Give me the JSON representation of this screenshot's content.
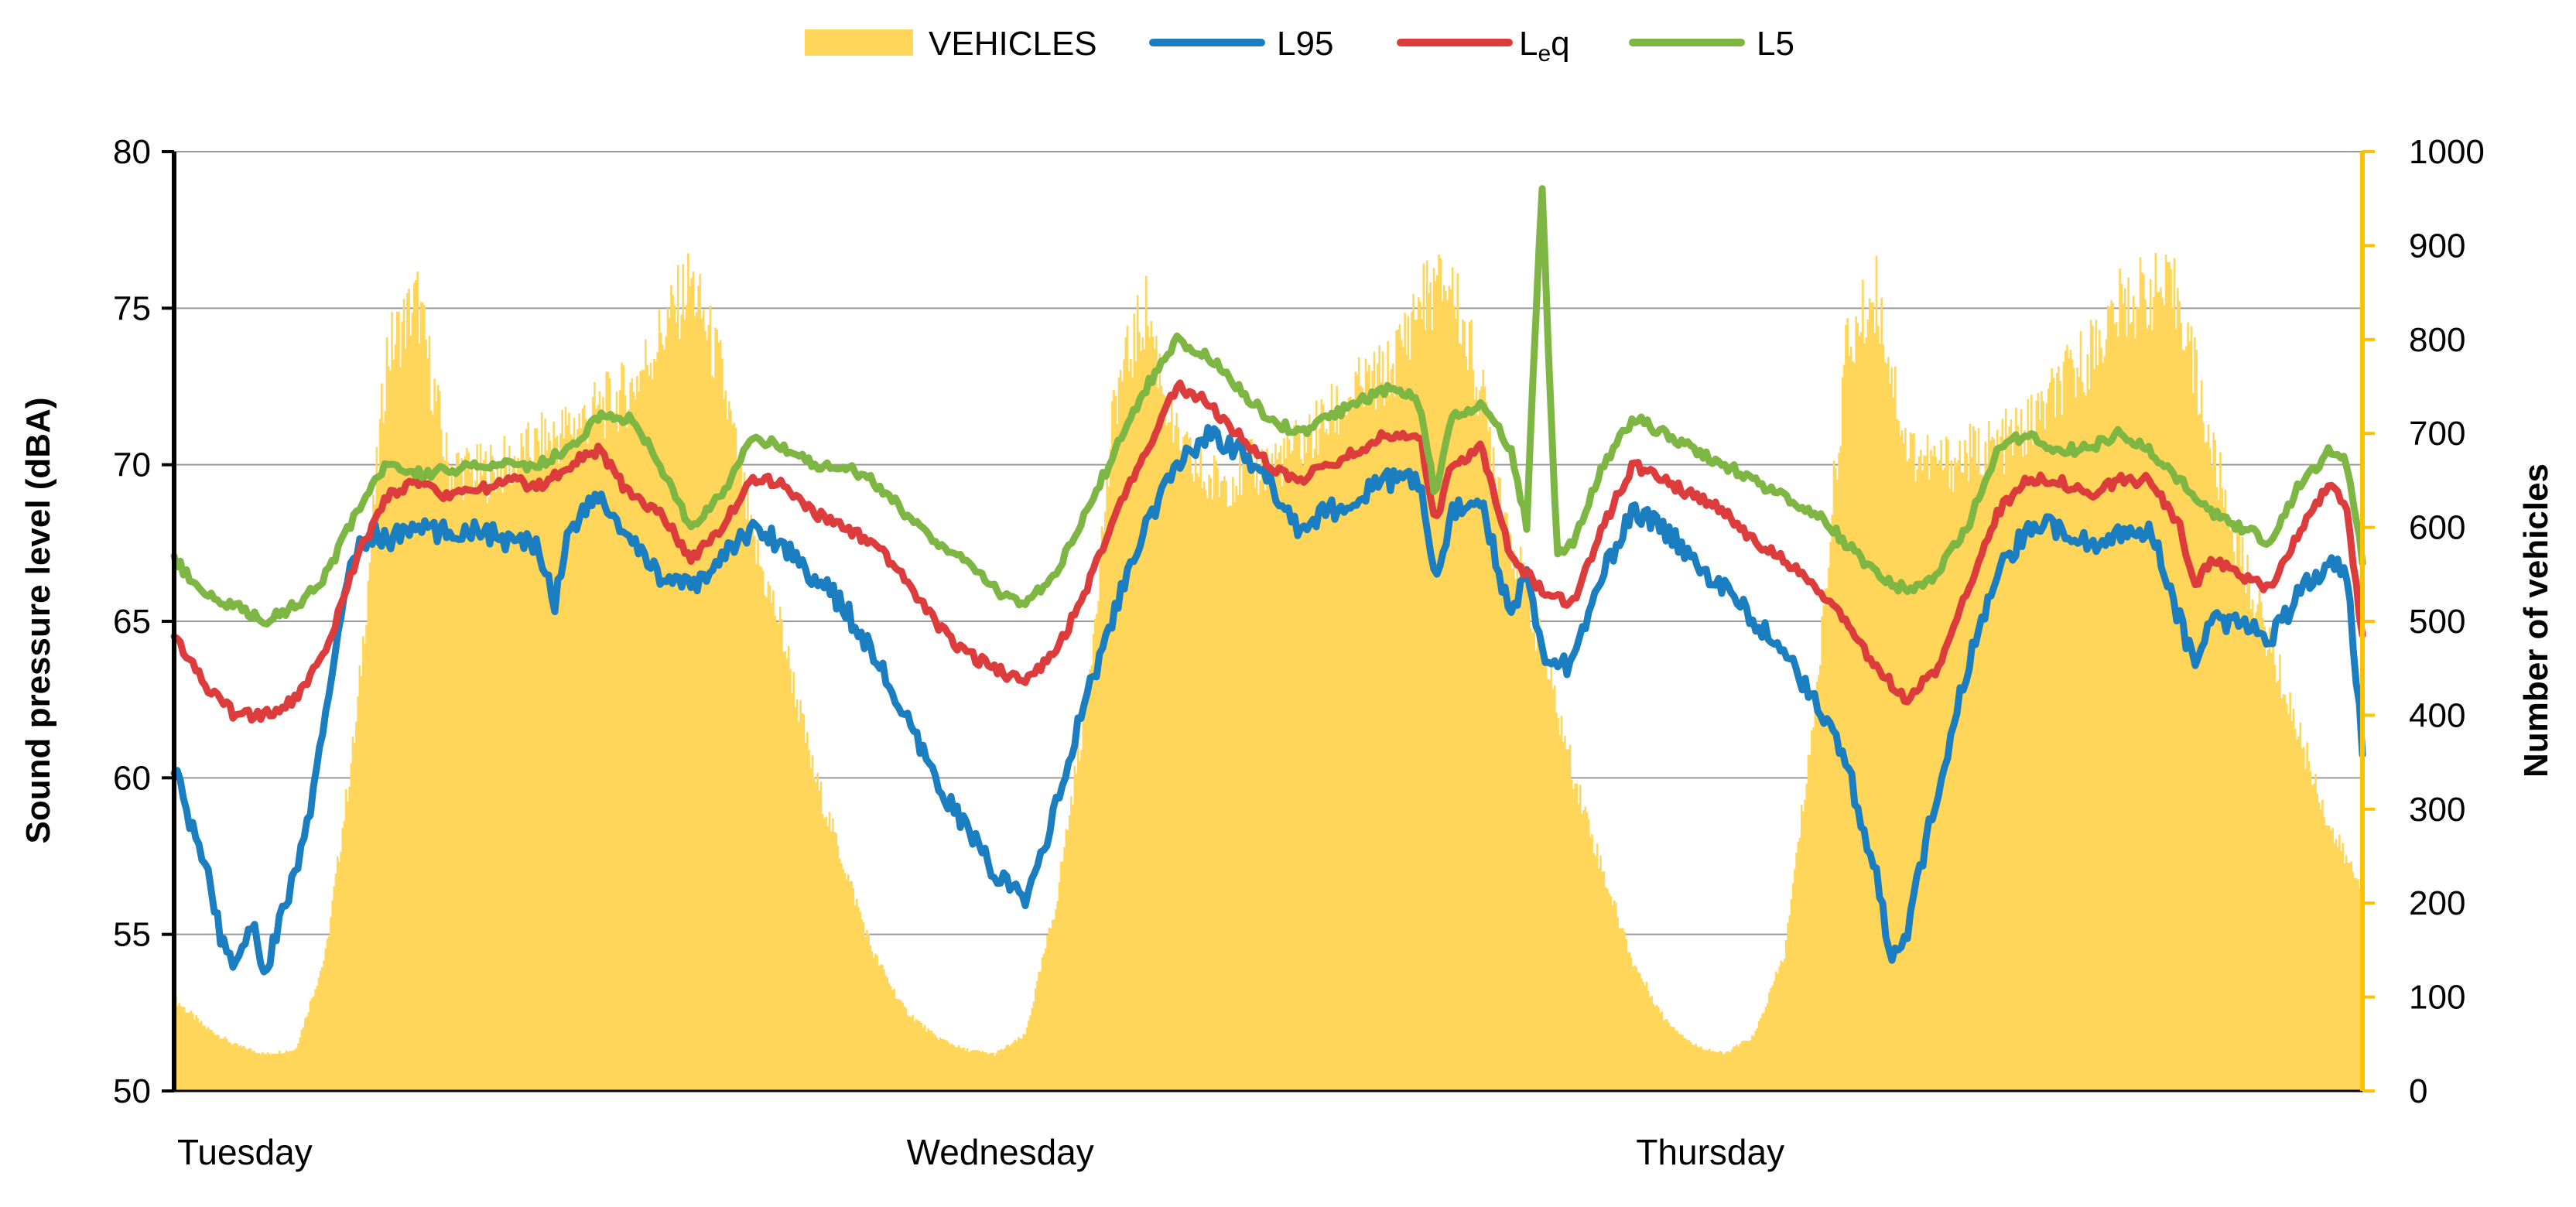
{
  "chart_data": {
    "type": "line",
    "title": "",
    "legend": {
      "position": "top",
      "entries": [
        {
          "key": "vehicles",
          "label": "VEHICLES",
          "color": "#FFD55A",
          "kind": "area"
        },
        {
          "key": "l95",
          "label": "L95",
          "color": "#1A7EC0",
          "kind": "line"
        },
        {
          "key": "leq",
          "label": "L",
          "sub": "e",
          "suffix": "q",
          "color": "#DD3C3C",
          "kind": "line"
        },
        {
          "key": "l5",
          "label": "L5",
          "color": "#7DB642",
          "kind": "line"
        }
      ]
    },
    "y_left": {
      "label": "Sound pressure level (dBA)",
      "min": 50,
      "max": 80,
      "step": 5,
      "ticks": [
        "50",
        "55",
        "60",
        "65",
        "70",
        "75",
        "80"
      ]
    },
    "y_right": {
      "label": "Number of vehicles",
      "min": 0,
      "max": 1000,
      "step": 100,
      "ticks": [
        "0",
        "100",
        "200",
        "300",
        "400",
        "500",
        "600",
        "700",
        "800",
        "900",
        "1000"
      ]
    },
    "x": {
      "unit": "hours from start",
      "range": [
        0,
        72
      ],
      "day_labels": [
        {
          "hour": 0,
          "label": "Tuesday"
        },
        {
          "hour": 24,
          "label": "Wednesday"
        },
        {
          "hour": 48,
          "label": "Thursday"
        }
      ]
    },
    "grid": true,
    "series": [
      {
        "name": "VEHICLES",
        "key": "vehicles",
        "axis": "right",
        "points": [
          [
            0,
            100
          ],
          [
            1,
            70
          ],
          [
            2,
            50
          ],
          [
            3,
            40
          ],
          [
            4,
            45
          ],
          [
            5,
            150
          ],
          [
            6,
            400
          ],
          [
            7,
            800
          ],
          [
            8,
            860
          ],
          [
            9,
            680
          ],
          [
            10,
            670
          ],
          [
            11,
            680
          ],
          [
            12,
            700
          ],
          [
            13,
            720
          ],
          [
            14,
            740
          ],
          [
            15,
            760
          ],
          [
            16,
            820
          ],
          [
            17,
            880
          ],
          [
            18,
            780
          ],
          [
            19,
            600
          ],
          [
            20,
            500
          ],
          [
            21,
            350
          ],
          [
            22,
            250
          ],
          [
            23,
            150
          ],
          [
            24,
            90
          ],
          [
            25,
            60
          ],
          [
            26,
            45
          ],
          [
            27,
            40
          ],
          [
            28,
            60
          ],
          [
            29,
            200
          ],
          [
            30,
            420
          ],
          [
            31,
            760
          ],
          [
            32,
            850
          ],
          [
            33,
            700
          ],
          [
            34,
            660
          ],
          [
            35,
            670
          ],
          [
            36,
            680
          ],
          [
            37,
            700
          ],
          [
            38,
            730
          ],
          [
            39,
            760
          ],
          [
            40,
            780
          ],
          [
            41,
            860
          ],
          [
            42,
            880
          ],
          [
            43,
            760
          ],
          [
            44,
            600
          ],
          [
            45,
            480
          ],
          [
            46,
            350
          ],
          [
            47,
            240
          ],
          [
            48,
            140
          ],
          [
            49,
            80
          ],
          [
            50,
            50
          ],
          [
            51,
            40
          ],
          [
            52,
            60
          ],
          [
            53,
            150
          ],
          [
            54,
            420
          ],
          [
            55,
            800
          ],
          [
            56,
            870
          ],
          [
            57,
            700
          ],
          [
            58,
            680
          ],
          [
            59,
            690
          ],
          [
            60,
            700
          ],
          [
            61,
            720
          ],
          [
            62,
            760
          ],
          [
            63,
            800
          ],
          [
            64,
            850
          ],
          [
            65,
            870
          ],
          [
            66,
            860
          ],
          [
            67,
            700
          ],
          [
            68,
            580
          ],
          [
            69,
            480
          ],
          [
            70,
            380
          ],
          [
            71,
            280
          ],
          [
            72,
            220
          ]
        ]
      },
      {
        "name": "L95",
        "key": "l95",
        "axis": "left",
        "points": [
          [
            0,
            60.5
          ],
          [
            0.5,
            58.5
          ],
          [
            1,
            57.5
          ],
          [
            1.5,
            55
          ],
          [
            2,
            54
          ],
          [
            2.5,
            55.5
          ],
          [
            3,
            53.8
          ],
          [
            3.5,
            55.5
          ],
          [
            4,
            57
          ],
          [
            4.5,
            59
          ],
          [
            5,
            62
          ],
          [
            5.5,
            65.5
          ],
          [
            6,
            67.2
          ],
          [
            6.5,
            67.8
          ],
          [
            7,
            67.6
          ],
          [
            8,
            68
          ],
          [
            9,
            67.8
          ],
          [
            10,
            68
          ],
          [
            11,
            67.5
          ],
          [
            12,
            67.5
          ],
          [
            12.5,
            65.5
          ],
          [
            13,
            68
          ],
          [
            14,
            69
          ],
          [
            15,
            67.5
          ],
          [
            16,
            66.5
          ],
          [
            17,
            66
          ],
          [
            18,
            67
          ],
          [
            19,
            68
          ],
          [
            20,
            67.5
          ],
          [
            21,
            66.5
          ],
          [
            22,
            65.5
          ],
          [
            23,
            64
          ],
          [
            24,
            62
          ],
          [
            25,
            60
          ],
          [
            26,
            58.5
          ],
          [
            27,
            57
          ],
          [
            28,
            56
          ],
          [
            29,
            59
          ],
          [
            30,
            62.5
          ],
          [
            31,
            65.5
          ],
          [
            32,
            68
          ],
          [
            33,
            70
          ],
          [
            34,
            71
          ],
          [
            35,
            70.5
          ],
          [
            36,
            69.5
          ],
          [
            37,
            68
          ],
          [
            38,
            68.5
          ],
          [
            39,
            69
          ],
          [
            40,
            69.5
          ],
          [
            41,
            69.5
          ],
          [
            41.5,
            66
          ],
          [
            42,
            68.5
          ],
          [
            43,
            69
          ],
          [
            44,
            65
          ],
          [
            44.5,
            67
          ],
          [
            45,
            64
          ],
          [
            46,
            63.5
          ],
          [
            47,
            66.5
          ],
          [
            48,
            68.5
          ],
          [
            49,
            68
          ],
          [
            50,
            67
          ],
          [
            51,
            66
          ],
          [
            52,
            65
          ],
          [
            53,
            64
          ],
          [
            54,
            62.5
          ],
          [
            55,
            60.5
          ],
          [
            56,
            57
          ],
          [
            56.5,
            54
          ],
          [
            57,
            55
          ],
          [
            58,
            59.5
          ],
          [
            59,
            63.5
          ],
          [
            60,
            66.5
          ],
          [
            61,
            68
          ],
          [
            62,
            68
          ],
          [
            63,
            67.5
          ],
          [
            64,
            67.8
          ],
          [
            65,
            68
          ],
          [
            66,
            65
          ],
          [
            66.5,
            63.5
          ],
          [
            67,
            65
          ],
          [
            68,
            65
          ],
          [
            69,
            64.5
          ],
          [
            70,
            66
          ],
          [
            71,
            67
          ],
          [
            71.5,
            66.5
          ],
          [
            72,
            61
          ]
        ]
      },
      {
        "name": "Leq",
        "key": "leq",
        "axis": "left",
        "points": [
          [
            0,
            64.5
          ],
          [
            1,
            63
          ],
          [
            2,
            62
          ],
          [
            3,
            62
          ],
          [
            4,
            62.5
          ],
          [
            5,
            64
          ],
          [
            6,
            67
          ],
          [
            7,
            69
          ],
          [
            8,
            69.5
          ],
          [
            9,
            69
          ],
          [
            10,
            69.2
          ],
          [
            11,
            69.5
          ],
          [
            12,
            69.3
          ],
          [
            13,
            70
          ],
          [
            14,
            70.5
          ],
          [
            15,
            69
          ],
          [
            16,
            68.5
          ],
          [
            17,
            67
          ],
          [
            18,
            68
          ],
          [
            19,
            69.5
          ],
          [
            20,
            69.5
          ],
          [
            21,
            68.5
          ],
          [
            22,
            68
          ],
          [
            23,
            67.5
          ],
          [
            24,
            66.5
          ],
          [
            25,
            65
          ],
          [
            26,
            64
          ],
          [
            27,
            63.5
          ],
          [
            28,
            63
          ],
          [
            29,
            64
          ],
          [
            30,
            66
          ],
          [
            31,
            68.5
          ],
          [
            32,
            70.5
          ],
          [
            33,
            72.5
          ],
          [
            34,
            72
          ],
          [
            35,
            71
          ],
          [
            36,
            70
          ],
          [
            37,
            69.5
          ],
          [
            38,
            70
          ],
          [
            39,
            70.5
          ],
          [
            40,
            71
          ],
          [
            41,
            71
          ],
          [
            41.5,
            68
          ],
          [
            42,
            70
          ],
          [
            43,
            70.5
          ],
          [
            44,
            67
          ],
          [
            45,
            66
          ],
          [
            46,
            65.5
          ],
          [
            47,
            68
          ],
          [
            48,
            70
          ],
          [
            49,
            69.5
          ],
          [
            50,
            69
          ],
          [
            51,
            68.5
          ],
          [
            52,
            67.5
          ],
          [
            53,
            67
          ],
          [
            54,
            66
          ],
          [
            55,
            65
          ],
          [
            56,
            63.5
          ],
          [
            57,
            62.5
          ],
          [
            58,
            63.5
          ],
          [
            59,
            66
          ],
          [
            60,
            68.5
          ],
          [
            61,
            69.5
          ],
          [
            62,
            69.5
          ],
          [
            63,
            69
          ],
          [
            64,
            69.5
          ],
          [
            65,
            69.5
          ],
          [
            66,
            68
          ],
          [
            66.5,
            66
          ],
          [
            67,
            67
          ],
          [
            68,
            66.5
          ],
          [
            69,
            66
          ],
          [
            70,
            68
          ],
          [
            71,
            69.5
          ],
          [
            71.5,
            68.5
          ],
          [
            72,
            64.5
          ]
        ]
      },
      {
        "name": "L5",
        "key": "l5",
        "axis": "left",
        "points": [
          [
            0,
            67
          ],
          [
            1,
            65.8
          ],
          [
            2,
            65.5
          ],
          [
            3,
            65
          ],
          [
            4,
            65.5
          ],
          [
            5,
            66.5
          ],
          [
            6,
            68.5
          ],
          [
            7,
            70
          ],
          [
            8,
            69.7
          ],
          [
            9,
            69.8
          ],
          [
            10,
            70
          ],
          [
            11,
            70
          ],
          [
            12,
            70
          ],
          [
            13,
            70.5
          ],
          [
            14,
            71.5
          ],
          [
            15,
            71.5
          ],
          [
            16,
            70
          ],
          [
            17,
            68
          ],
          [
            18,
            69
          ],
          [
            19,
            71
          ],
          [
            20,
            70.5
          ],
          [
            21,
            70
          ],
          [
            22,
            70
          ],
          [
            23,
            69.5
          ],
          [
            24,
            68.5
          ],
          [
            25,
            67.5
          ],
          [
            26,
            67
          ],
          [
            27,
            66
          ],
          [
            28,
            65.5
          ],
          [
            29,
            66.5
          ],
          [
            30,
            68.5
          ],
          [
            31,
            70.5
          ],
          [
            32,
            72.5
          ],
          [
            33,
            74
          ],
          [
            34,
            73.5
          ],
          [
            35,
            72.5
          ],
          [
            36,
            71.5
          ],
          [
            37,
            71
          ],
          [
            38,
            71.5
          ],
          [
            39,
            72
          ],
          [
            40,
            72.5
          ],
          [
            41,
            72
          ],
          [
            41.5,
            69
          ],
          [
            42,
            71.5
          ],
          [
            43,
            72
          ],
          [
            44,
            70.5
          ],
          [
            44.5,
            68
          ],
          [
            45,
            79
          ],
          [
            45.5,
            67
          ],
          [
            46,
            67.5
          ],
          [
            47,
            70
          ],
          [
            48,
            71.5
          ],
          [
            49,
            71
          ],
          [
            50,
            70.5
          ],
          [
            51,
            70
          ],
          [
            52,
            69.5
          ],
          [
            53,
            69
          ],
          [
            54,
            68.5
          ],
          [
            55,
            67.5
          ],
          [
            56,
            66.5
          ],
          [
            57,
            66
          ],
          [
            58,
            66.5
          ],
          [
            59,
            68
          ],
          [
            60,
            70.5
          ],
          [
            61,
            71
          ],
          [
            62,
            70.5
          ],
          [
            63,
            70.5
          ],
          [
            64,
            71
          ],
          [
            65,
            70.5
          ],
          [
            66,
            69.5
          ],
          [
            67,
            68.5
          ],
          [
            68,
            68
          ],
          [
            69,
            67.5
          ],
          [
            70,
            69.5
          ],
          [
            71,
            70.5
          ],
          [
            71.5,
            70
          ],
          [
            72,
            67
          ]
        ]
      }
    ]
  }
}
